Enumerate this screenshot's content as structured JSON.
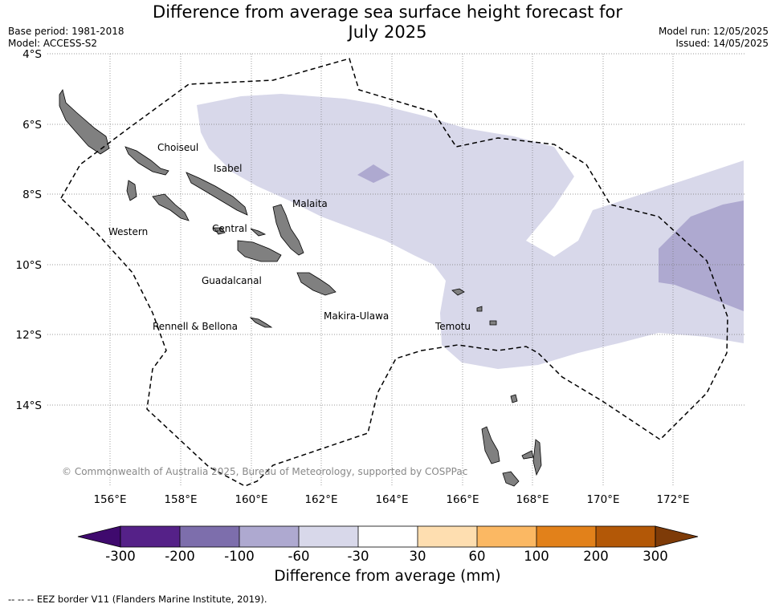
{
  "title": {
    "line1": "Difference from average sea surface height forecast for",
    "line2": "July 2025"
  },
  "meta_left": {
    "base_period": "Base period: 1981-2018",
    "model": "Model: ACCESS-S2"
  },
  "meta_right": {
    "model_run": "Model run: 12/05/2025",
    "issued": "Issued: 14/05/2025"
  },
  "map": {
    "lat_labels": [
      "4°S",
      "6°S",
      "8°S",
      "10°S",
      "12°S",
      "14°S"
    ],
    "lon_labels": [
      "156°E",
      "158°E",
      "160°E",
      "162°E",
      "164°E",
      "166°E",
      "168°E",
      "170°E",
      "172°E"
    ],
    "regions": [
      "Choiseul",
      "Isabel",
      "Malaita",
      "Western",
      "Central",
      "Guadalcanal",
      "Makira-Ulawa",
      "Rennell & Bellona",
      "Temotu"
    ],
    "copyright": "© Commonwealth of Australia 2025, Bureau of Meteorology, supported by COSPPac",
    "land_color": "#808080",
    "anomaly_colors": {
      "minus_60_to_minus_30": "#d8d8ea",
      "minus_100_to_minus_60": "#aea9d0"
    }
  },
  "colorbar": {
    "ticks": [
      "-300",
      "-200",
      "-100",
      "-60",
      "-30",
      "30",
      "60",
      "100",
      "200",
      "300"
    ],
    "colors": [
      "#3f0a6e",
      "#552188",
      "#7d6eac",
      "#aea9d0",
      "#d8d8ea",
      "#ffffff",
      "#fedeb0",
      "#fbb863",
      "#e2811a",
      "#b35807",
      "#7e3b08"
    ],
    "title": "Difference from average (mm)"
  },
  "footnote": "--  --  -- EEZ border V11 (Flanders Marine Institute, 2019)."
}
